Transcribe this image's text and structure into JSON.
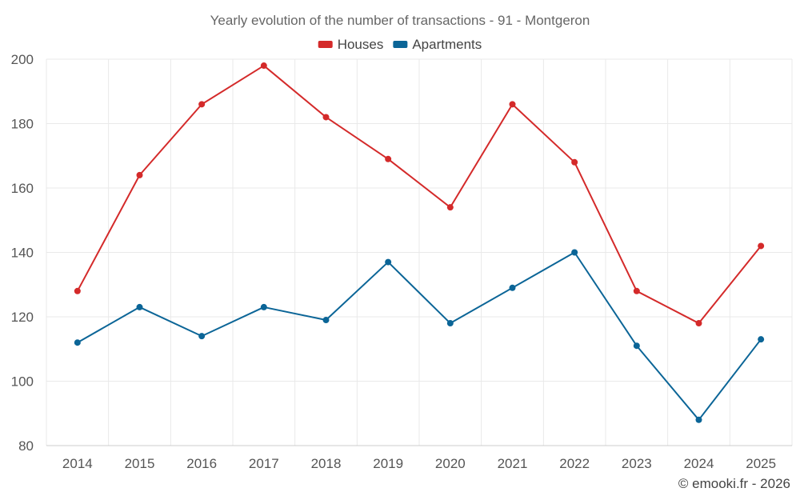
{
  "chart_data": {
    "type": "line",
    "title": "Yearly evolution of the number of transactions - 91 - Montgeron",
    "xlabel": "",
    "ylabel": "",
    "categories": [
      "2014",
      "2015",
      "2016",
      "2017",
      "2018",
      "2019",
      "2020",
      "2021",
      "2022",
      "2023",
      "2024",
      "2025"
    ],
    "ylim": [
      80,
      200
    ],
    "yticks": [
      80,
      100,
      120,
      140,
      160,
      180,
      200
    ],
    "ytick_labels": [
      "80",
      "100",
      "120",
      "140",
      "160",
      "180",
      "200"
    ],
    "grid": true,
    "legend_position": "top-center",
    "series": [
      {
        "name": "Houses",
        "color": "#d42a2a",
        "values": [
          128,
          164,
          186,
          198,
          182,
          169,
          154,
          186,
          168,
          128,
          118,
          142
        ]
      },
      {
        "name": "Apartments",
        "color": "#0b6597",
        "values": [
          112,
          123,
          114,
          123,
          119,
          137,
          118,
          129,
          140,
          111,
          88,
          113
        ]
      }
    ],
    "credit": "© emooki.fr - 2026"
  }
}
